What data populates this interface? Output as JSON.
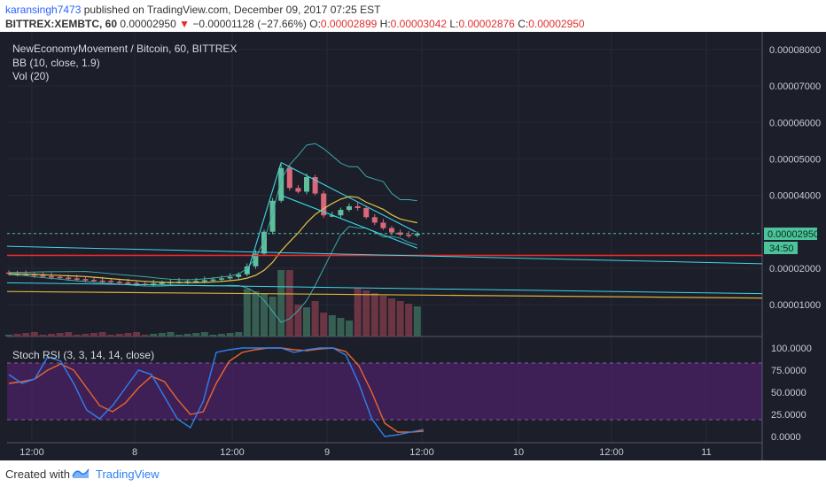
{
  "header": {
    "username": "karansingh7473",
    "published_text": "published on TradingView.com, December 09, 2017 07:25 EST",
    "symbol": "BITTREX:XEMBTC, 60",
    "last": "0.00002950",
    "change_arrow": "▼",
    "change": "−0.00001128 (−27.66%)",
    "o_label": "O:",
    "o_value": "0.00002899",
    "h_label": "H:",
    "h_value": "0.00003042",
    "l_label": "L:",
    "l_value": "0.00002876",
    "c_label": "C:",
    "c_value": "0.00002950"
  },
  "pane_titles": {
    "main": "NewEconomyMovement / Bitcoin, 60, BITTREX",
    "bb": "BB (10, close, 1.9)",
    "vol": "Vol (20)",
    "rsi": "Stoch RSI (3, 3, 14, 14, close)"
  },
  "price_axis": [
    "0.00008000",
    "0.00007000",
    "0.00006000",
    "0.00005000",
    "0.00004000",
    "0.00002000",
    "0.00001000"
  ],
  "current_price_label": "0.00002950",
  "countdown_label": "34:50",
  "rsi_axis": [
    "100.0000",
    "75.0000",
    "50.0000",
    "25.0000",
    "0.0000"
  ],
  "time_axis": [
    "12:00",
    "8",
    "12:00",
    "9",
    "12:00",
    "10",
    "12:00",
    "11"
  ],
  "footer": {
    "created_with": "Created with",
    "brand": "TradingView"
  },
  "colors": {
    "background": "#1c1e2a",
    "candle_up": "#5fbf9a",
    "candle_down": "#d9697a",
    "bb_band": "#3fb3b3",
    "bb_basis": "#e0c544",
    "trend_cyan": "#3fd6e6",
    "support_red": "#e22a2a",
    "support_yellow": "#d6b43a",
    "rsi_k": "#2f80ed",
    "rsi_d": "#e8672a",
    "rsi_band": "#5a2a7a",
    "price_highlight": "#4cc49a"
  },
  "chart_data": {
    "type": "candlestick",
    "y_unit": "BTC",
    "ylim": [
      0.0,
      8.7e-06
    ],
    "closes": [
      1.85e-05,
      1.84e-05,
      1.83e-05,
      1.8e-05,
      1.78e-05,
      1.76e-05,
      1.74e-05,
      1.72e-05,
      1.7e-05,
      1.68e-05,
      1.66e-05,
      1.65e-05,
      1.63e-05,
      1.61e-05,
      1.59e-05,
      1.57e-05,
      1.56e-05,
      1.58e-05,
      1.6e-05,
      1.62e-05,
      1.63e-05,
      1.64e-05,
      1.65e-05,
      1.67e-05,
      1.69e-05,
      1.72e-05,
      1.76e-05,
      1.83e-05,
      2.05e-05,
      2.4e-05,
      3e-05,
      3.85e-05,
      4.75e-05,
      4.2e-05,
      4.1e-05,
      4.5e-05,
      4.05e-05,
      3.45e-05,
      3.45e-05,
      3.6e-05,
      3.7e-05,
      3.65e-05,
      3.4e-05,
      3.25e-05,
      3.1e-05,
      2.98e-05,
      2.92e-05,
      2.9e-05,
      2.95e-05
    ],
    "volume_max_label": "",
    "stoch_rsi": {
      "k": [
        70,
        60,
        65,
        90,
        85,
        60,
        30,
        20,
        35,
        55,
        75,
        70,
        45,
        20,
        10,
        40,
        95,
        98,
        100,
        100,
        100,
        100,
        95,
        98,
        100,
        100,
        92,
        60,
        20,
        0,
        2,
        5,
        8
      ],
      "d": [
        60,
        62,
        65,
        75,
        82,
        75,
        55,
        35,
        28,
        38,
        55,
        68,
        62,
        42,
        25,
        28,
        60,
        85,
        95,
        98,
        100,
        100,
        98,
        97,
        99,
        100,
        96,
        80,
        50,
        15,
        5,
        5,
        6
      ]
    }
  }
}
